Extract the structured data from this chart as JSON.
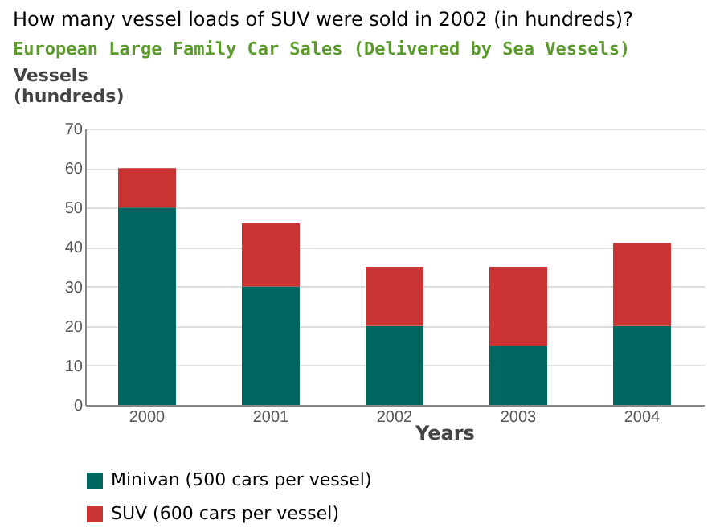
{
  "chart_data": {
    "type": "bar",
    "title": "How many vessel loads of SUV were sold in 2002 (in hundreds)?",
    "subtitle": "European Large Family Car Sales (Delivered by Sea Vessels)",
    "xlabel": "Years",
    "ylabel": "Vessels\n(hundreds)",
    "categories": [
      "2000",
      "2001",
      "2002",
      "2003",
      "2004"
    ],
    "stacked": true,
    "series": [
      {
        "name": "Minivan (500 cars per vessel)",
        "color": "#006861",
        "values": [
          50,
          30,
          20,
          15,
          20
        ]
      },
      {
        "name": "SUV (600 cars per vessel)",
        "color": "#cc3333",
        "values": [
          10,
          16,
          15,
          20,
          21
        ]
      }
    ],
    "ylim": [
      0,
      70
    ],
    "yticks": [
      0,
      10,
      20,
      30,
      40,
      50,
      60,
      70
    ],
    "grid": "y",
    "legend": "bottom"
  }
}
